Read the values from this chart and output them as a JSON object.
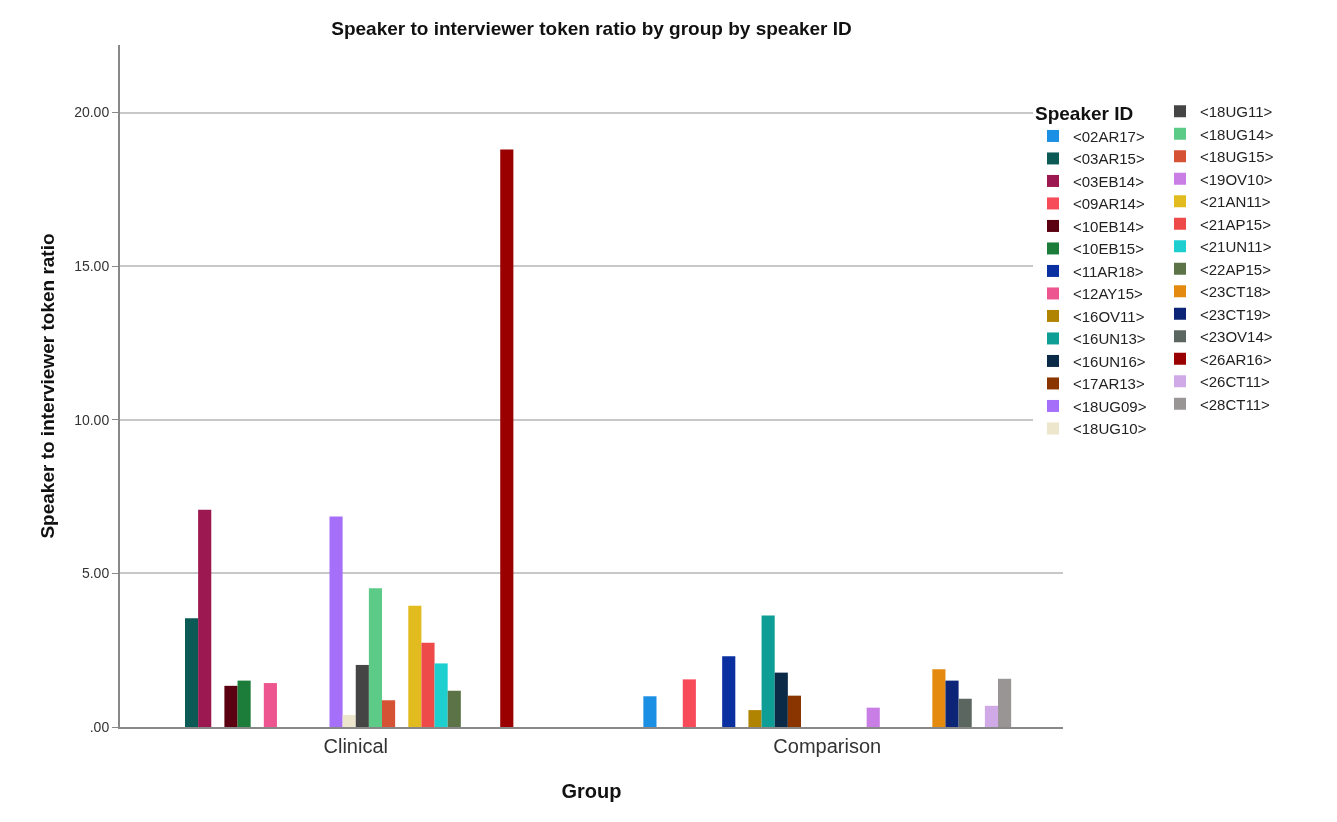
{
  "chart_data": {
    "type": "bar",
    "title": "Speaker to interviewer token ratio by group by speaker ID",
    "xlabel": "Group",
    "ylabel": "Speaker to interviewer token ratio",
    "legend_title": "Speaker ID",
    "categories": [
      "Clinical",
      "Comparison"
    ],
    "series": [
      {
        "name": "<02AR17>",
        "color": "#1a8fe3",
        "values": [
          null,
          1.0
        ]
      },
      {
        "name": "<03AR15>",
        "color": "#0b5a55",
        "values": [
          3.54,
          null
        ]
      },
      {
        "name": "<03EB14>",
        "color": "#9b1850",
        "values": [
          7.07,
          null
        ]
      },
      {
        "name": "<09AR14>",
        "color": "#f74b5a",
        "values": [
          null,
          1.55
        ]
      },
      {
        "name": "<10EB14>",
        "color": "#5a0010",
        "values": [
          1.34,
          null
        ]
      },
      {
        "name": "<10EB15>",
        "color": "#1c7d3a",
        "values": [
          1.51,
          null
        ]
      },
      {
        "name": "<11AR18>",
        "color": "#0a2fa0",
        "values": [
          null,
          2.3
        ]
      },
      {
        "name": "<12AY15>",
        "color": "#ec5590",
        "values": [
          1.43,
          null
        ]
      },
      {
        "name": "<16OV11>",
        "color": "#b08300",
        "values": [
          null,
          0.55
        ]
      },
      {
        "name": "<16UN13>",
        "color": "#0e9e96",
        "values": [
          null,
          3.63
        ]
      },
      {
        "name": "<16UN16>",
        "color": "#0a2a48",
        "values": [
          null,
          1.77
        ]
      },
      {
        "name": "<17AR13>",
        "color": "#8a3500",
        "values": [
          null,
          1.02
        ]
      },
      {
        "name": "<18UG09>",
        "color": "#a56ffa",
        "values": [
          6.85,
          null
        ]
      },
      {
        "name": "<18UG10>",
        "color": "#ede5cc",
        "values": [
          0.39,
          null
        ]
      },
      {
        "name": "<18UG11>",
        "color": "#454545",
        "values": [
          2.02,
          null
        ]
      },
      {
        "name": "<18UG14>",
        "color": "#5ccb88",
        "values": [
          4.52,
          null
        ]
      },
      {
        "name": "<18UG15>",
        "color": "#d65235",
        "values": [
          0.87,
          null
        ]
      },
      {
        "name": "<19OV10>",
        "color": "#c97ee6",
        "values": [
          null,
          0.63
        ]
      },
      {
        "name": "<21AN11>",
        "color": "#e2bb1f",
        "values": [
          3.95,
          null
        ]
      },
      {
        "name": "<21AP15>",
        "color": "#ef4a4a",
        "values": [
          2.74,
          null
        ]
      },
      {
        "name": "<21UN11>",
        "color": "#1ecfd0",
        "values": [
          2.07,
          null
        ]
      },
      {
        "name": "<22AP15>",
        "color": "#5b7346",
        "values": [
          1.18,
          null
        ]
      },
      {
        "name": "<23CT18>",
        "color": "#e38a0f",
        "values": [
          null,
          1.88
        ]
      },
      {
        "name": "<23CT19>",
        "color": "#0c2577",
        "values": [
          null,
          1.51
        ]
      },
      {
        "name": "<23OV14>",
        "color": "#5c6660",
        "values": [
          null,
          0.92
        ]
      },
      {
        "name": "<26AR16>",
        "color": "#9b0000",
        "values": [
          18.8,
          null
        ]
      },
      {
        "name": "<26CT11>",
        "color": "#cfaae6",
        "values": [
          null,
          0.69
        ]
      },
      {
        "name": "<28CT11>",
        "color": "#999594",
        "values": [
          null,
          1.57
        ]
      }
    ],
    "ylim": [
      0,
      22.2
    ],
    "yticks": [
      {
        "value": 0,
        "label": ".00"
      },
      {
        "value": 5,
        "label": "5.00"
      },
      {
        "value": 10,
        "label": "10.00"
      },
      {
        "value": 15,
        "label": "15.00"
      },
      {
        "value": 20,
        "label": "20.00"
      }
    ],
    "grid": "y",
    "legend": "right"
  }
}
